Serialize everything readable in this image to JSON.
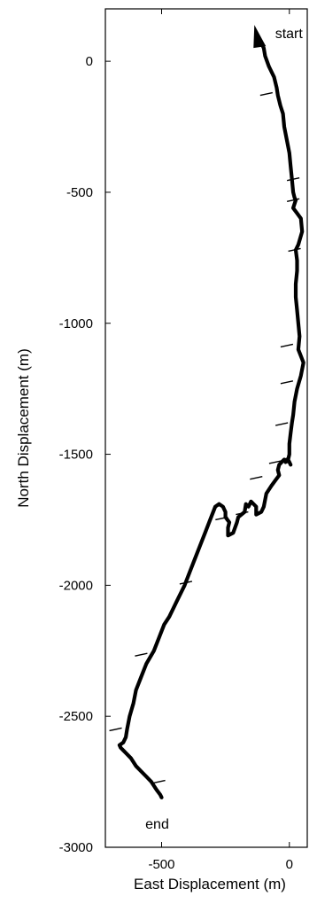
{
  "chart_data": {
    "type": "line",
    "title": "",
    "xlabel": "East Displacement (m)",
    "ylabel": "North Displacement (m)",
    "xlim": [
      -720,
      70
    ],
    "ylim": [
      -3000,
      200
    ],
    "x_ticks": [
      -500,
      0
    ],
    "x_tick_labels": [
      "-500",
      "0"
    ],
    "y_ticks": [
      0,
      -500,
      -1000,
      -1500,
      -2000,
      -2500,
      -3000
    ],
    "y_tick_labels": [
      "0",
      "-500",
      "-1000",
      "-1500",
      "-2000",
      "-2500",
      "-3000"
    ],
    "grid": false,
    "legend": null,
    "series": [
      {
        "line_color": "#000000",
        "x": [
          -130,
          -115,
          -100,
          -95,
          -80,
          -60,
          -50,
          -45,
          -35,
          -25,
          -20,
          -10,
          0,
          5,
          10,
          15,
          20,
          25,
          15,
          30,
          45,
          50,
          35,
          25,
          30,
          30,
          25,
          25,
          30,
          35,
          40,
          35,
          55,
          45,
          30,
          20,
          15,
          10,
          5,
          0,
          0,
          -5,
          5,
          0,
          -10,
          -5,
          -15,
          -20,
          -30,
          -40,
          -45,
          -40,
          -55,
          -70,
          -90,
          -100,
          -110,
          -130,
          -130,
          -150,
          -160,
          -170,
          -175,
          -200,
          -205,
          -220,
          -240,
          -240,
          -235,
          -250,
          -250,
          -260,
          -275,
          -290,
          -310,
          -330,
          -350,
          -370,
          -390,
          -410,
          -440,
          -470,
          -490,
          -510,
          -530,
          -560,
          -580,
          -600,
          -610,
          -625,
          -635,
          -640,
          -650,
          -665,
          -665,
          -660,
          -650,
          -640,
          -620,
          -600,
          -580,
          -560,
          -540,
          -520,
          -505,
          -500
        ],
        "y": [
          105,
          80,
          50,
          20,
          -20,
          -60,
          -100,
          -130,
          -170,
          -200,
          -250,
          -300,
          -350,
          -400,
          -450,
          -500,
          -520,
          -530,
          -560,
          -580,
          -600,
          -650,
          -700,
          -720,
          -760,
          -800,
          -850,
          -900,
          -950,
          -1000,
          -1050,
          -1100,
          -1150,
          -1200,
          -1250,
          -1300,
          -1350,
          -1380,
          -1420,
          -1460,
          -1500,
          -1520,
          -1540,
          -1530,
          -1520,
          -1525,
          -1530,
          -1520,
          -1530,
          -1540,
          -1560,
          -1580,
          -1600,
          -1620,
          -1650,
          -1700,
          -1720,
          -1730,
          -1700,
          -1680,
          -1700,
          -1690,
          -1720,
          -1740,
          -1760,
          -1800,
          -1810,
          -1780,
          -1760,
          -1740,
          -1720,
          -1700,
          -1690,
          -1700,
          -1750,
          -1800,
          -1850,
          -1900,
          -1950,
          -2000,
          -2060,
          -2120,
          -2150,
          -2200,
          -2250,
          -2300,
          -2350,
          -2400,
          -2450,
          -2500,
          -2550,
          -2580,
          -2600,
          -2610,
          -2610,
          -2620,
          -2630,
          -2640,
          -2660,
          -2690,
          -2710,
          -2730,
          -2750,
          -2780,
          -2800,
          -2810
        ]
      }
    ],
    "tick_marks": {
      "x": [
        -90,
        15,
        15,
        20,
        -10,
        -10,
        -30,
        -55,
        -130,
        -185,
        -265,
        -405,
        -580,
        -680,
        -510
      ],
      "y": [
        -125,
        -450,
        -530,
        -720,
        -1085,
        -1225,
        -1385,
        -1530,
        -1590,
        -1725,
        -1745,
        -1990,
        -2265,
        -2550,
        -2750
      ]
    },
    "annotations": [
      "start",
      "end"
    ]
  }
}
